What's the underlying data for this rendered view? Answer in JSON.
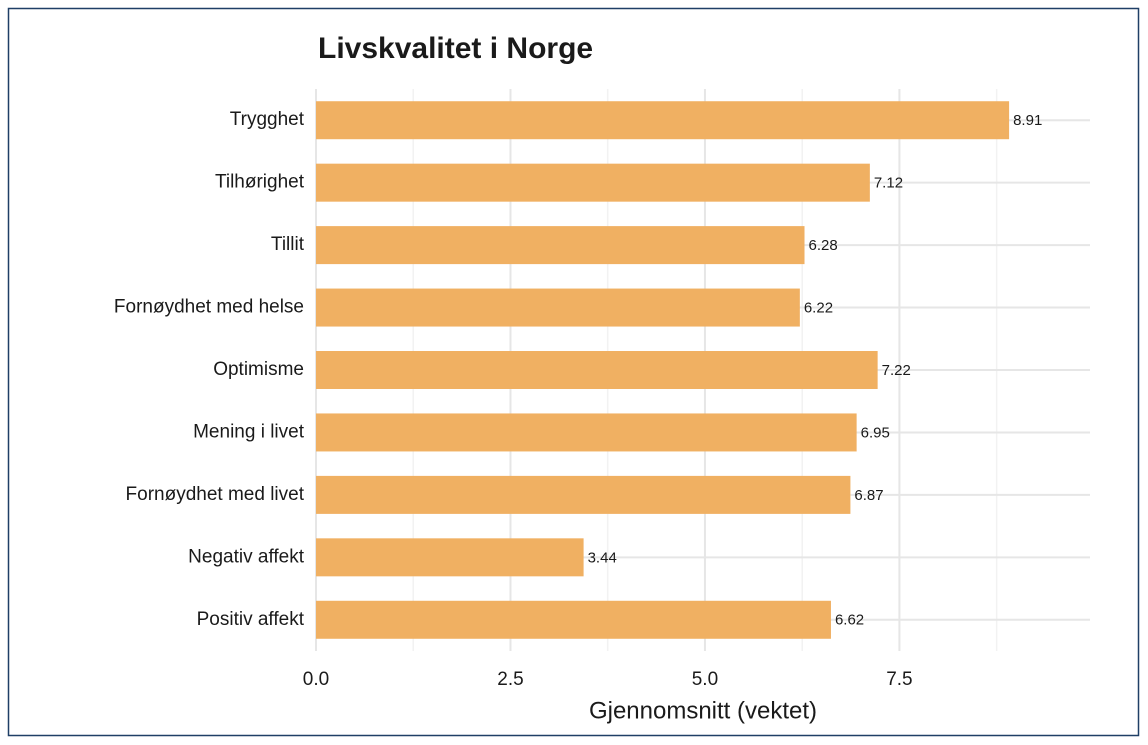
{
  "chart_data": {
    "type": "bar",
    "orientation": "horizontal",
    "title": "Livskvalitet i Norge",
    "x_label": "Gjennomsnitt (vektet)",
    "categories": [
      "Trygghet",
      "Tilhørighet",
      "Tillit",
      "Fornøydhet med helse",
      "Optimisme",
      "Mening i livet",
      "Fornøydhet med livet",
      "Negativ affekt",
      "Positiv affekt"
    ],
    "values": [
      8.91,
      7.12,
      6.28,
      6.22,
      7.22,
      6.95,
      6.87,
      3.44,
      6.62
    ],
    "color": "#f0b062",
    "xlim": [
      0,
      9.95
    ],
    "xticks": [
      {
        "value": 0,
        "label": "0.0"
      },
      2.5,
      {
        "value": 5,
        "label": "5.0"
      },
      7.5
    ],
    "grid": true,
    "minor_grid": true
  }
}
